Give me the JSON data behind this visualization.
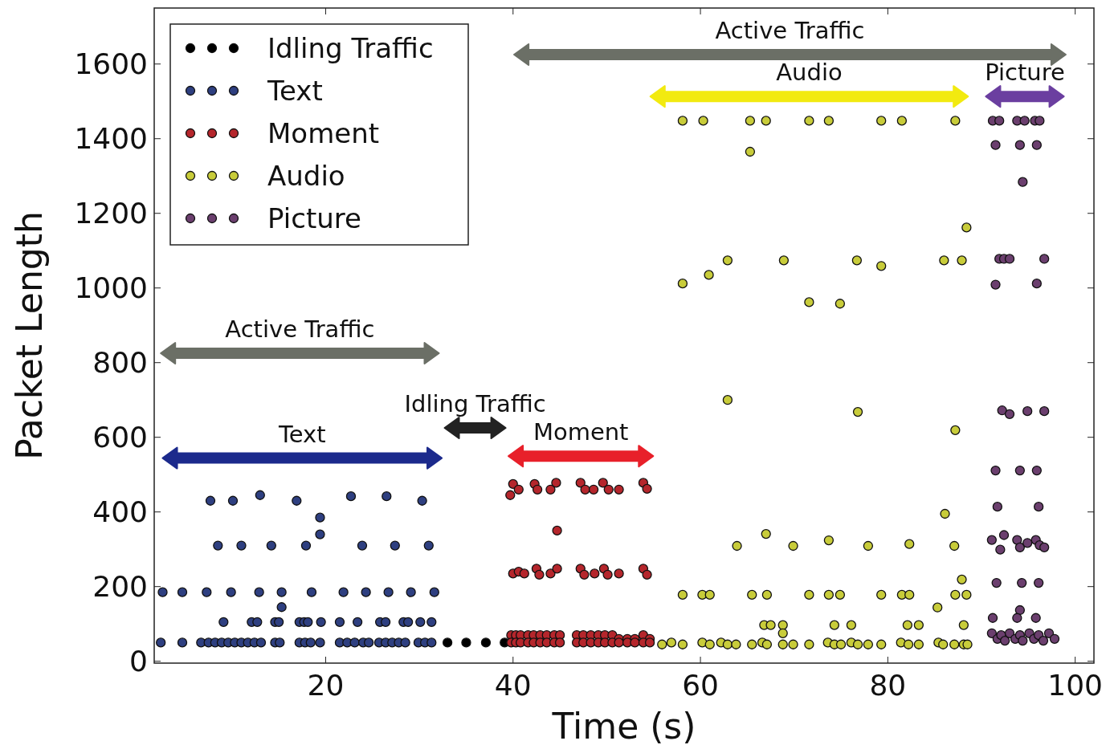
{
  "chart_data": {
    "type": "scatter",
    "xlabel": "Time (s)",
    "ylabel": "Packet Length",
    "xlim": [
      1.7,
      102
    ],
    "ylim": [
      -5,
      1750
    ],
    "xticks": [
      20,
      40,
      60,
      80,
      100
    ],
    "yticks": [
      0,
      200,
      400,
      600,
      800,
      1000,
      1200,
      1400,
      1600
    ],
    "grid": false,
    "legend": "top left",
    "marker": "circle",
    "series": [
      {
        "name": "Idling Traffic",
        "color": "#000000",
        "x": [
          33.0,
          35.0,
          37.1,
          39.1
        ],
        "values": [
          50,
          50,
          50,
          50
        ]
      },
      {
        "name": "Text",
        "color": "#2e3f80",
        "x": [
          7.7,
          10.1,
          13.0,
          16.9,
          22.7,
          26.5,
          30.3,
          19.4,
          19.4,
          8.5,
          11.0,
          14.2,
          17.9,
          23.9,
          27.4,
          31.0,
          2.6,
          4.7,
          7.3,
          9.9,
          12.9,
          15.3,
          18.5,
          21.9,
          24.3,
          26.7,
          29.1,
          31.6,
          15.3,
          9.1,
          12.1,
          12.7,
          14.6,
          15.0,
          17.2,
          17.7,
          18.1,
          19.5,
          21.5,
          23.4,
          25.8,
          26.4,
          28.3,
          28.8,
          30.1,
          31.3,
          2.4,
          4.7,
          6.7,
          7.5,
          8.2,
          8.9,
          9.6,
          10.3,
          11.0,
          11.7,
          12.4,
          13.1,
          14.6,
          15.1,
          17.2,
          17.8,
          18.4,
          19.4,
          21.5,
          22.3,
          23.1,
          24.0,
          24.6,
          25.7,
          26.4,
          27.1,
          27.8,
          28.5,
          29.9,
          30.6,
          31.3
        ],
        "values": [
          430,
          430,
          445,
          430,
          442,
          442,
          430,
          385,
          340,
          310,
          310,
          310,
          310,
          310,
          310,
          310,
          185,
          185,
          185,
          185,
          185,
          185,
          185,
          185,
          185,
          185,
          185,
          185,
          145,
          105,
          105,
          105,
          105,
          105,
          105,
          105,
          105,
          105,
          105,
          105,
          105,
          105,
          105,
          105,
          105,
          105,
          50,
          50,
          50,
          50,
          50,
          50,
          50,
          50,
          50,
          50,
          50,
          50,
          50,
          50,
          50,
          50,
          50,
          50,
          50,
          50,
          50,
          50,
          50,
          50,
          50,
          50,
          50,
          50,
          50,
          50,
          50
        ]
      },
      {
        "name": "Moment",
        "color": "#b5262c",
        "x": [
          40.0,
          40.6,
          39.7,
          42.3,
          42.6,
          44.0,
          44.6,
          47.2,
          47.7,
          48.6,
          49.6,
          50.2,
          51.3,
          53.9,
          54.3,
          44.7,
          40.0,
          40.6,
          41.2,
          42.5,
          42.8,
          44.0,
          44.7,
          47.2,
          47.6,
          48.7,
          49.7,
          50.1,
          51.3,
          53.9,
          54.3,
          39.8,
          40.3,
          40.8,
          41.6,
          42.2,
          42.9,
          43.6,
          44.4,
          45.0,
          46.8,
          47.5,
          48.3,
          49.1,
          49.8,
          50.6,
          51.3,
          52.2,
          53.0,
          53.9,
          54.6,
          39.8,
          40.3,
          40.8,
          41.6,
          42.2,
          42.9,
          43.6,
          44.4,
          45.0,
          46.8,
          47.5,
          48.3,
          49.1,
          49.8,
          50.6,
          51.3,
          52.2,
          53.0,
          53.9,
          54.6
        ],
        "values": [
          475,
          460,
          445,
          475,
          460,
          460,
          478,
          478,
          460,
          460,
          478,
          460,
          460,
          478,
          462,
          350,
          235,
          240,
          235,
          248,
          232,
          235,
          248,
          248,
          232,
          235,
          248,
          232,
          235,
          248,
          232,
          70,
          70,
          70,
          70,
          70,
          70,
          70,
          70,
          70,
          70,
          70,
          70,
          70,
          70,
          70,
          60,
          60,
          60,
          70,
          60,
          50,
          50,
          50,
          50,
          50,
          50,
          50,
          50,
          50,
          50,
          50,
          50,
          50,
          50,
          50,
          50,
          50,
          50,
          50,
          50
        ]
      },
      {
        "name": "Audio",
        "color": "#c8cc3a",
        "x": [
          58.1,
          60.3,
          65.3,
          67.0,
          71.6,
          73.7,
          79.3,
          81.5,
          87.2,
          65.3,
          88.4,
          62.9,
          68.9,
          76.7,
          86.0,
          87.9,
          79.3,
          58.1,
          60.9,
          71.6,
          74.9,
          62.9,
          76.8,
          87.2,
          86.1,
          63.9,
          67.0,
          69.9,
          73.7,
          77.9,
          82.3,
          87.1,
          87.9,
          58.1,
          60.2,
          61.0,
          65.5,
          67.1,
          71.6,
          73.7,
          74.9,
          79.3,
          81.5,
          82.3,
          87.2,
          88.4,
          85.3,
          66.8,
          67.5,
          68.8,
          74.3,
          76.1,
          82.1,
          83.3,
          88.1,
          68.8,
          55.9,
          56.9,
          58.1,
          60.2,
          61.0,
          62.2,
          62.9,
          63.8,
          65.5,
          66.6,
          67.1,
          68.8,
          69.9,
          71.6,
          73.6,
          74.3,
          75.0,
          76.1,
          76.8,
          77.9,
          79.3,
          81.4,
          82.2,
          83.3,
          85.4,
          85.9,
          87.1,
          88.1,
          88.5
        ],
        "values": [
          1448,
          1448,
          1448,
          1448,
          1448,
          1448,
          1448,
          1448,
          1448,
          1365,
          1162,
          1074,
          1074,
          1074,
          1074,
          1074,
          1059,
          1012,
          1035,
          962,
          958,
          700,
          668,
          619,
          395,
          309,
          341,
          309,
          324,
          309,
          314,
          309,
          219,
          178,
          178,
          178,
          178,
          178,
          178,
          178,
          178,
          178,
          178,
          178,
          178,
          178,
          144,
          97,
          97,
          97,
          97,
          97,
          97,
          97,
          97,
          75,
          45,
          50,
          45,
          50,
          45,
          50,
          45,
          45,
          45,
          50,
          45,
          45,
          45,
          45,
          50,
          45,
          45,
          50,
          45,
          45,
          45,
          50,
          45,
          45,
          50,
          45,
          45,
          45,
          45
        ]
      },
      {
        "name": "Picture",
        "color": "#6b3f6e",
        "x": [
          91.2,
          91.9,
          93.8,
          94.6,
          95.7,
          96.2,
          91.5,
          94.1,
          95.9,
          94.4,
          91.9,
          92.4,
          93.0,
          96.7,
          91.5,
          95.9,
          92.2,
          93.0,
          94.9,
          96.7,
          91.5,
          94.1,
          95.9,
          91.7,
          96.1,
          91.1,
          92.4,
          92.0,
          93.8,
          94.1,
          94.9,
          95.8,
          96.2,
          96.7,
          91.6,
          94.3,
          96.1,
          94.1,
          91.2,
          93.8,
          95.8,
          91.1,
          91.7,
          92.1,
          92.5,
          93.0,
          93.6,
          94.1,
          94.4,
          95.1,
          95.6,
          96.1,
          96.6,
          97.2,
          97.8
        ],
        "values": [
          1448,
          1448,
          1448,
          1448,
          1448,
          1448,
          1383,
          1383,
          1383,
          1284,
          1078,
          1078,
          1078,
          1078,
          1009,
          1012,
          672,
          662,
          670,
          670,
          511,
          511,
          511,
          414,
          414,
          325,
          338,
          299,
          325,
          305,
          317,
          325,
          311,
          305,
          210,
          210,
          210,
          137,
          116,
          116,
          116,
          75,
          60,
          70,
          55,
          75,
          60,
          70,
          55,
          75,
          60,
          70,
          55,
          75,
          60
        ]
      }
    ],
    "annotations": [
      "Active Traffic",
      "Text",
      "Idling Traffic",
      "Moment",
      "Active Traffic",
      "Audio",
      "Picture"
    ]
  }
}
